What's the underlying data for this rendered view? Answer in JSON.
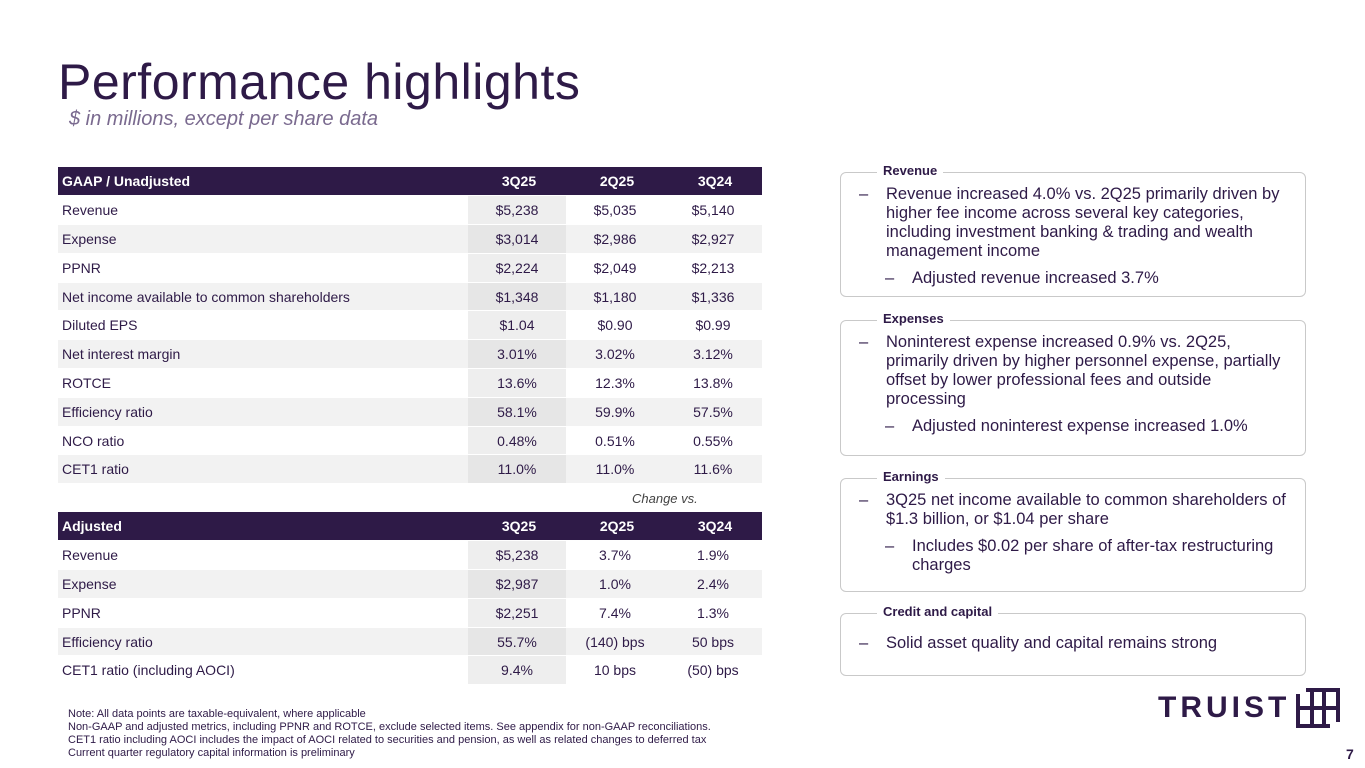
{
  "header": {
    "title": "Performance highlights",
    "subtitle": "$ in millions, except per share data"
  },
  "gaap": {
    "headers": [
      "GAAP / Unadjusted",
      "3Q25",
      "2Q25",
      "3Q24"
    ],
    "rows": [
      [
        "Revenue",
        "$5,238",
        "$5,035",
        "$5,140"
      ],
      [
        "Expense",
        "$3,014",
        "$2,986",
        "$2,927"
      ],
      [
        "PPNR",
        "$2,224",
        "$2,049",
        "$2,213"
      ],
      [
        "Net income available to common shareholders",
        "$1,348",
        "$1,180",
        "$1,336"
      ],
      [
        "Diluted EPS",
        "$1.04",
        "$0.90",
        "$0.99"
      ],
      [
        "Net interest margin",
        "3.01%",
        "3.02%",
        "3.12%"
      ],
      [
        "ROTCE",
        "13.6%",
        "12.3%",
        "13.8%"
      ],
      [
        "Efficiency ratio",
        "58.1%",
        "59.9%",
        "57.5%"
      ],
      [
        "NCO ratio",
        "0.48%",
        "0.51%",
        "0.55%"
      ],
      [
        "CET1 ratio",
        "11.0%",
        "11.0%",
        "11.6%"
      ]
    ]
  },
  "change_vs": "Change vs.",
  "adjusted": {
    "headers": [
      "Adjusted",
      "3Q25",
      "2Q25",
      "3Q24"
    ],
    "rows": [
      [
        "Revenue",
        "$5,238",
        "3.7%",
        "1.9%"
      ],
      [
        "Expense",
        "$2,987",
        "1.0%",
        "2.4%"
      ],
      [
        "PPNR",
        "$2,251",
        "7.4%",
        "1.3%"
      ],
      [
        "Efficiency ratio",
        "55.7%",
        "(140) bps",
        "50 bps"
      ],
      [
        "CET1 ratio (including AOCI)",
        "9.4%",
        "10 bps",
        "(50) bps"
      ]
    ]
  },
  "boxes": {
    "revenue": {
      "label": "Revenue",
      "bullet1": "Revenue increased 4.0% vs. 2Q25 primarily driven by higher fee income across several key categories, including investment banking & trading and wealth management income",
      "bullet2": "Adjusted revenue increased 3.7%"
    },
    "expenses": {
      "label": "Expenses",
      "bullet1": "Noninterest expense increased 0.9% vs. 2Q25, primarily driven by higher personnel expense, partially offset by lower professional fees and outside processing",
      "bullet2": "Adjusted noninterest expense increased 1.0%"
    },
    "earnings": {
      "label": "Earnings",
      "bullet1": "3Q25 net income available to common shareholders of $1.3 billion, or $1.04 per share",
      "bullet2": "Includes $0.02 per share of after-tax restructuring charges"
    },
    "credit": {
      "label": "Credit and capital",
      "bullet1": "Solid asset quality and capital remains strong"
    }
  },
  "notes": {
    "line1": "Note: All data points are taxable-equivalent, where applicable",
    "line2": "Non-GAAP and adjusted metrics, including PPNR and ROTCE, exclude selected items.  See appendix for non-GAAP reconciliations.",
    "line3": "CET1 ratio including AOCI includes the impact of AOCI related to securities and pension, as well as related changes to deferred tax",
    "line4": "Current quarter regulatory capital information is preliminary"
  },
  "logo": {
    "text": "TRUIST"
  },
  "page_number": "7",
  "colors": {
    "brand": "#2e1a47",
    "row_alt": "#f2f2f2",
    "border": "#c9c9c9"
  }
}
